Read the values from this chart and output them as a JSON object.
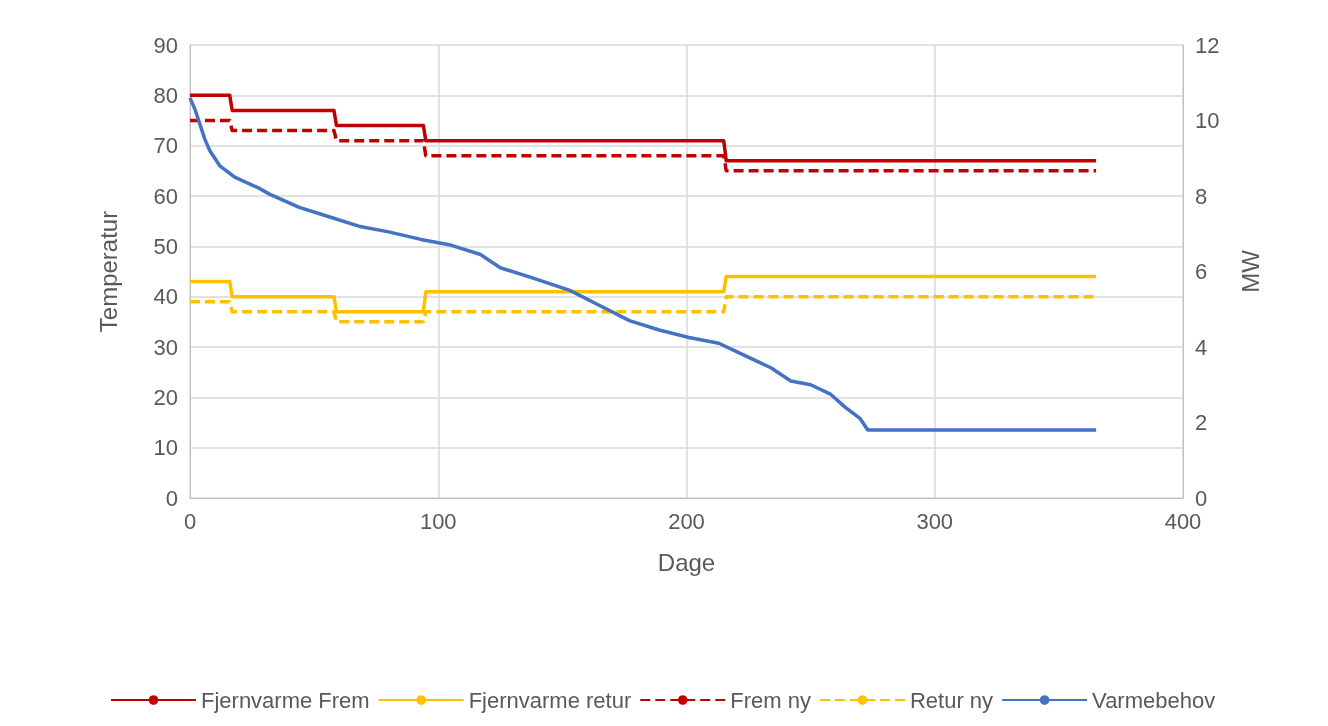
{
  "chart_data": {
    "type": "line",
    "xlabel": "Dage",
    "ylabel": "Temperatur",
    "y2label": "MW",
    "xlim": [
      0,
      400
    ],
    "xticks": [
      0,
      100,
      200,
      300,
      400
    ],
    "ylim": [
      0,
      90
    ],
    "yticks": [
      0,
      10,
      20,
      30,
      40,
      50,
      60,
      70,
      80,
      90
    ],
    "y2lim": [
      0,
      12
    ],
    "y2ticks": [
      0,
      2,
      4,
      6,
      8,
      10,
      12
    ],
    "grid": true,
    "legend": "bottom",
    "marker": "none",
    "series": [
      {
        "name": "Fjernvarme Frem",
        "color": "#c00000",
        "line_style": "solid",
        "x": [
          0,
          16,
          17,
          58,
          59,
          94,
          95,
          215,
          216,
          365
        ],
        "values": [
          80,
          80,
          77,
          77,
          74,
          74,
          71,
          71,
          67,
          67
        ]
      },
      {
        "name": "Fjernvarme retur",
        "color": "#ffc000",
        "line_style": "solid",
        "x": [
          0,
          16,
          17,
          58,
          59,
          94,
          95,
          215,
          216,
          365
        ],
        "values": [
          43,
          43,
          40,
          40,
          37,
          37,
          41,
          41,
          44,
          44
        ]
      },
      {
        "name": "Frem ny",
        "color": "#c00000",
        "line_style": "dashed",
        "x": [
          0,
          16,
          17,
          58,
          59,
          94,
          95,
          215,
          216,
          365
        ],
        "values": [
          75,
          75,
          73,
          73,
          71,
          71,
          68,
          68,
          65,
          65
        ]
      },
      {
        "name": "Retur ny",
        "color": "#ffc000",
        "line_style": "dashed",
        "x": [
          0,
          16,
          17,
          58,
          59,
          94,
          95,
          215,
          216,
          365
        ],
        "values": [
          39,
          39,
          37,
          37,
          35,
          35,
          37,
          37,
          40,
          40
        ]
      },
      {
        "name": "Varmebehov",
        "color": "#4472c4",
        "line_style": "solid",
        "axis": "y2",
        "x": [
          0,
          2,
          6,
          8,
          12,
          18,
          28,
          32,
          44,
          56,
          68,
          80,
          93,
          105,
          117,
          125,
          137,
          153,
          165,
          177,
          189,
          201,
          213,
          221,
          234,
          242,
          250,
          258,
          264,
          270,
          273,
          365
        ],
        "values": [
          10.6,
          10.3,
          9.5,
          9.2,
          8.8,
          8.5,
          8.2,
          8.05,
          7.7,
          7.45,
          7.2,
          7.05,
          6.85,
          6.7,
          6.45,
          6.1,
          5.85,
          5.5,
          5.1,
          4.7,
          4.45,
          4.25,
          4.1,
          3.85,
          3.45,
          3.1,
          3.0,
          2.75,
          2.4,
          2.1,
          1.8,
          1.8
        ]
      }
    ]
  }
}
